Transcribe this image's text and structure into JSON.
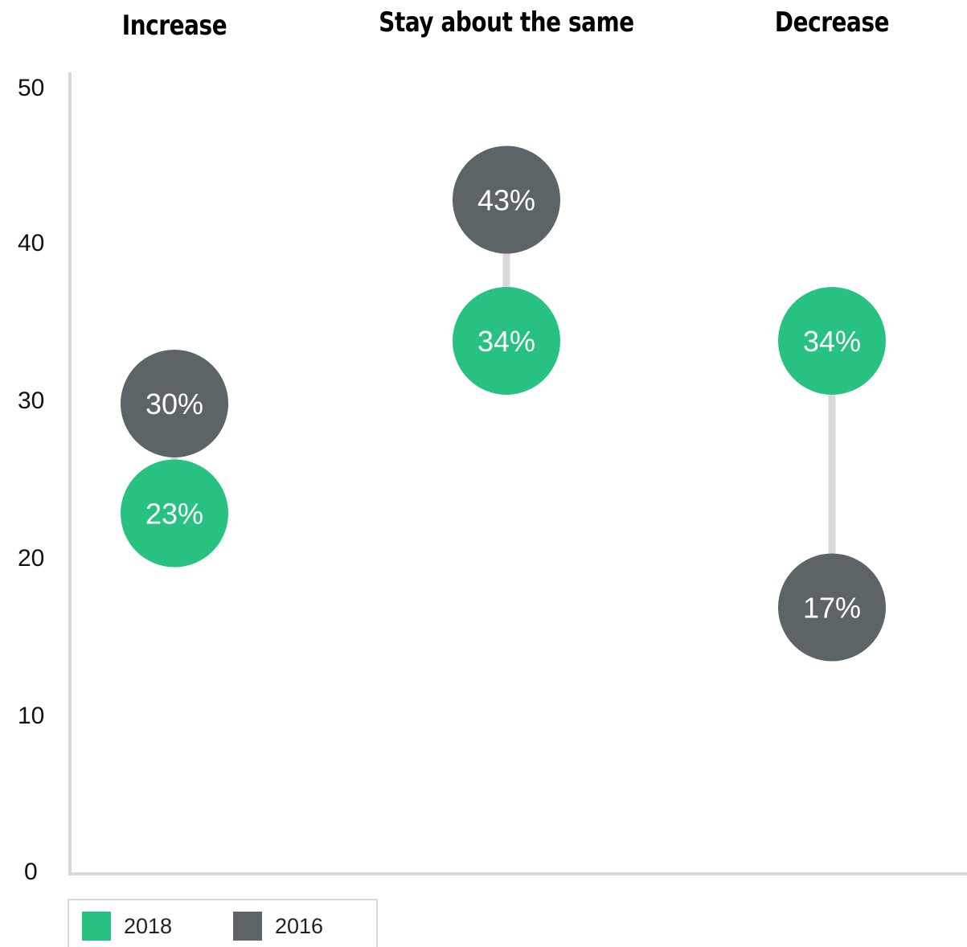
{
  "chart_data": {
    "type": "dumbbell",
    "categories": [
      "Increase",
      "Stay about the same",
      "Decrease"
    ],
    "series": [
      {
        "name": "2018",
        "color": "#27c281",
        "values": [
          23,
          34,
          34
        ],
        "labels": [
          "23%",
          "34%",
          "34%"
        ]
      },
      {
        "name": "2016",
        "color": "#5c6468",
        "values": [
          30,
          43,
          17
        ],
        "labels": [
          "30%",
          "43%",
          "17%"
        ]
      }
    ],
    "yticks": [
      "0",
      "10",
      "20",
      "30",
      "40",
      "50"
    ],
    "ylim": [
      0,
      50
    ],
    "connector_color": "#d9d9d9",
    "axis_color": "#d9d9d9",
    "legend_position": "bottom-left"
  }
}
